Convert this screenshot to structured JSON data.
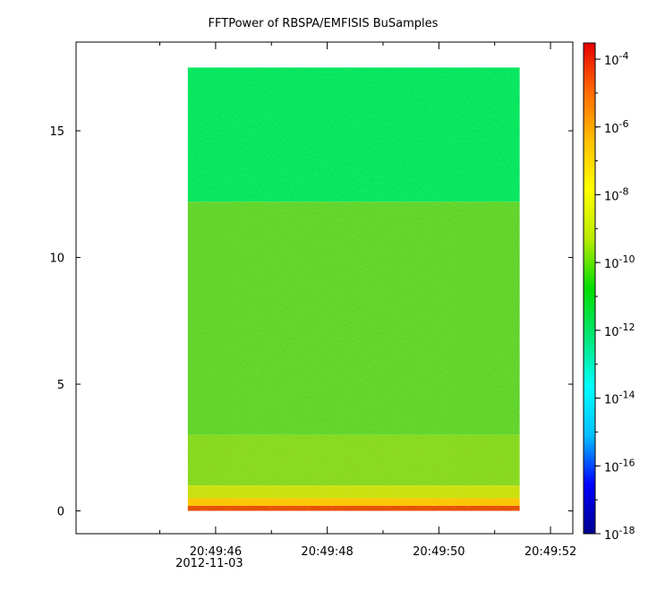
{
  "chart_data": {
    "type": "heatmap",
    "title": "FFTPower of RBSPA/EMFISIS  BuSamples",
    "xlabel": "",
    "ylabel": "",
    "x_ticks": [
      {
        "seconds": 0,
        "label": "20:49:46",
        "sublabel": "2012-11-03"
      },
      {
        "seconds": 2,
        "label": "20:49:48",
        "sublabel": ""
      },
      {
        "seconds": 4,
        "label": "20:49:50",
        "sublabel": ""
      },
      {
        "seconds": 6,
        "label": "20:49:52",
        "sublabel": ""
      }
    ],
    "x_minor_seconds": [
      -1,
      1,
      3,
      5
    ],
    "xlim_seconds": [
      -2.5,
      6.4
    ],
    "data_x_range_seconds": [
      -0.5,
      5.45
    ],
    "y_ticks": [
      0,
      5,
      10,
      15
    ],
    "ylim": [
      -0.9,
      18.5
    ],
    "data_y_range": [
      0,
      17.5
    ],
    "bands": [
      {
        "y_from": 12.2,
        "y_to": 17.5,
        "log10_power": -11.5,
        "color": "#00e660"
      },
      {
        "y_from": 3.0,
        "y_to": 12.2,
        "log10_power": -10.0,
        "color": "#5ed42a"
      },
      {
        "y_from": 1.0,
        "y_to": 3.0,
        "log10_power": -9.6,
        "color": "#86d81e"
      },
      {
        "y_from": 0.5,
        "y_to": 1.0,
        "log10_power": -8.5,
        "color": "#cbe00c"
      },
      {
        "y_from": 0.2,
        "y_to": 0.5,
        "log10_power": -7.5,
        "color": "#ffc400"
      },
      {
        "y_from": 0.0,
        "y_to": 0.2,
        "log10_power": -5.5,
        "color": "#e84a00"
      }
    ],
    "colorbar": {
      "scale": "log",
      "range": [
        1e-18,
        0.0003
      ],
      "ticks": [
        {
          "exp": -4,
          "base": "10",
          "power": "-4"
        },
        {
          "exp": -6,
          "base": "10",
          "power": "-6"
        },
        {
          "exp": -8,
          "base": "10",
          "power": "-8"
        },
        {
          "exp": -10,
          "base": "10",
          "power": "-10"
        },
        {
          "exp": -12,
          "base": "10",
          "power": "-12"
        },
        {
          "exp": -14,
          "base": "10",
          "power": "-14"
        },
        {
          "exp": -16,
          "base": "10",
          "power": "-16"
        },
        {
          "exp": -18,
          "base": "10",
          "power": "-18"
        }
      ],
      "colors": [
        "#00008f",
        "#0000ff",
        "#00bfff",
        "#00ffff",
        "#00e676",
        "#00dd00",
        "#b8ea00",
        "#ffff00",
        "#ffc000",
        "#ff6a00",
        "#e60000"
      ]
    },
    "grid": false,
    "legend": "none"
  }
}
